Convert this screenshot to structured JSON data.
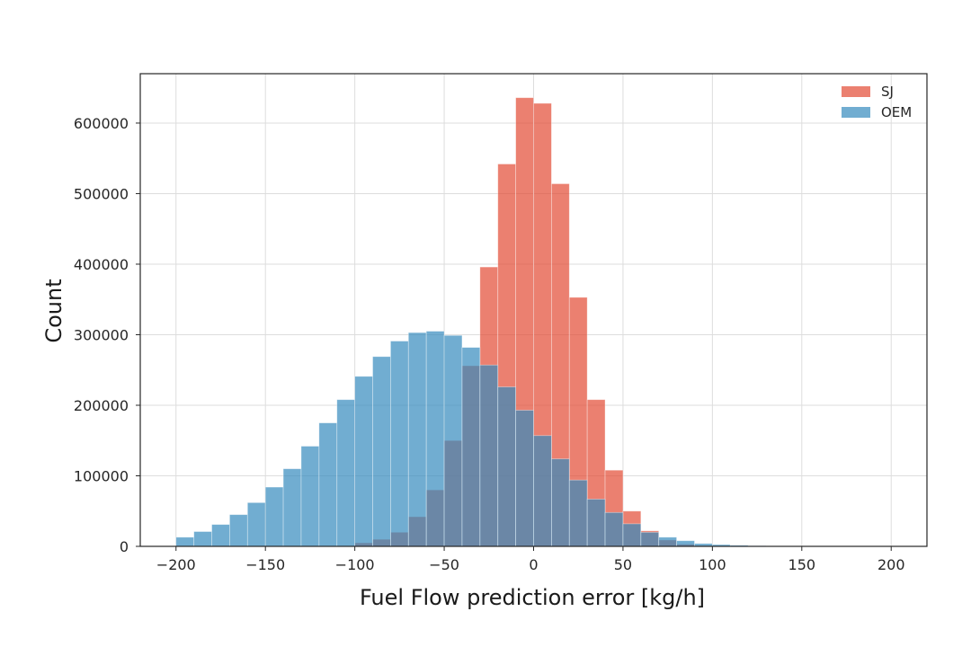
{
  "chart_data": {
    "type": "bar",
    "subtype": "overlapping-histogram",
    "xlabel": "Fuel Flow prediction error [kg/h]",
    "ylabel": "Count",
    "xlim": [
      -220,
      220
    ],
    "ylim": [
      0,
      670000
    ],
    "xticks": [
      -200,
      -150,
      -100,
      -50,
      0,
      50,
      100,
      150,
      200
    ],
    "xtick_labels": [
      "−200",
      "−150",
      "−100",
      "−50",
      "0",
      "50",
      "100",
      "150",
      "200"
    ],
    "yticks": [
      0,
      100000,
      200000,
      300000,
      400000,
      500000,
      600000
    ],
    "ytick_labels": [
      "0",
      "100000",
      "200000",
      "300000",
      "400000",
      "500000",
      "600000"
    ],
    "grid": true,
    "legend_position": "top-right",
    "bin_edges": [
      -200,
      -190,
      -180,
      -170,
      -160,
      -150,
      -140,
      -130,
      -120,
      -110,
      -100,
      -90,
      -80,
      -70,
      -60,
      -50,
      -40,
      -30,
      -20,
      -10,
      0,
      10,
      20,
      30,
      40,
      50,
      60,
      70,
      80,
      90,
      100,
      110,
      120,
      130,
      140,
      150,
      160,
      170,
      180,
      190,
      200
    ],
    "series": [
      {
        "name": "SJ",
        "color": "#e24a33",
        "values": [
          0,
          0,
          0,
          0,
          0,
          0,
          0,
          0,
          0,
          0,
          5000,
          10000,
          20000,
          42000,
          80000,
          150000,
          256000,
          396000,
          542000,
          636000,
          628000,
          514000,
          353000,
          208000,
          108000,
          50000,
          22000,
          9000,
          3000,
          1000,
          500,
          0,
          0,
          0,
          0,
          0,
          0,
          0,
          0,
          0
        ]
      },
      {
        "name": "OEM",
        "color": "#348abd",
        "values": [
          13000,
          21000,
          31000,
          45000,
          62000,
          84000,
          110000,
          142000,
          175000,
          208000,
          241000,
          269000,
          291000,
          303000,
          305000,
          299000,
          282000,
          257000,
          226000,
          193000,
          157000,
          124000,
          94000,
          67000,
          48000,
          32000,
          20000,
          13000,
          8000,
          4000,
          2500,
          1500,
          800,
          400,
          200,
          100,
          50,
          0,
          0,
          0
        ]
      }
    ]
  }
}
